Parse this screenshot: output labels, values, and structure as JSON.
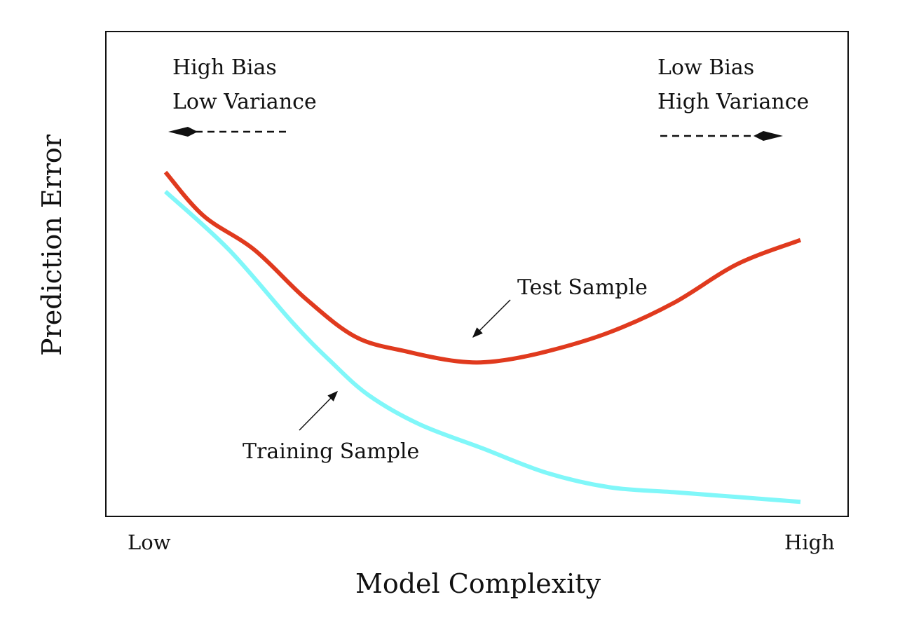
{
  "chart_data": {
    "type": "line",
    "title": "",
    "xlabel": "Model Complexity",
    "ylabel": "Prediction Error",
    "x_tick_labels": [
      "Low",
      "High"
    ],
    "xlim": [
      0,
      1
    ],
    "ylim": [
      0,
      1
    ],
    "grid": false,
    "colors": {
      "test": "#e03a1e",
      "training": "#80f7f9",
      "axes": "#111111"
    },
    "series": [
      {
        "name": "Test Sample",
        "x": [
          0.0,
          0.06,
          0.14,
          0.22,
          0.3,
          0.38,
          0.46,
          0.52,
          0.6,
          0.7,
          0.8,
          0.9,
          1.0
        ],
        "y": [
          0.71,
          0.62,
          0.55,
          0.45,
          0.37,
          0.34,
          0.32,
          0.32,
          0.34,
          0.38,
          0.44,
          0.52,
          0.57
        ]
      },
      {
        "name": "Training Sample",
        "x": [
          0.0,
          0.1,
          0.2,
          0.26,
          0.32,
          0.4,
          0.5,
          0.6,
          0.7,
          0.8,
          0.9,
          1.0
        ],
        "y": [
          0.67,
          0.55,
          0.4,
          0.32,
          0.25,
          0.19,
          0.14,
          0.09,
          0.06,
          0.05,
          0.04,
          0.03
        ]
      }
    ],
    "annotations": {
      "left_regime": [
        "High Bias",
        "Low Variance"
      ],
      "right_regime": [
        "Low Bias",
        "High Variance"
      ],
      "test_label": "Test Sample",
      "training_label": "Training Sample"
    }
  }
}
